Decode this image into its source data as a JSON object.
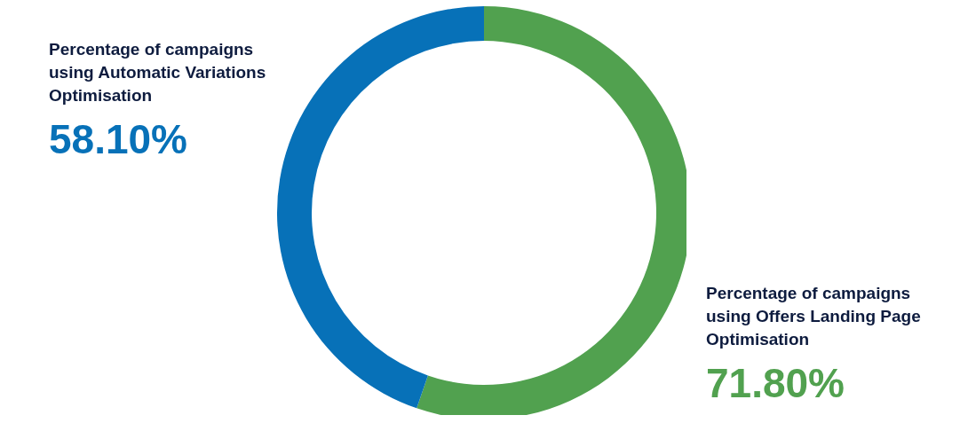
{
  "chart_data": {
    "type": "donut",
    "categories": [
      "Percentage of campaigns using Offers Landing Page Optimisation",
      "Percentage of campaigns using Automatic Variations Optimisation"
    ],
    "values": [
      71.8,
      58.1
    ],
    "colors": [
      "#51a14f",
      "#0771b8"
    ],
    "value_labels": [
      "71.80%",
      "58.10%"
    ]
  }
}
